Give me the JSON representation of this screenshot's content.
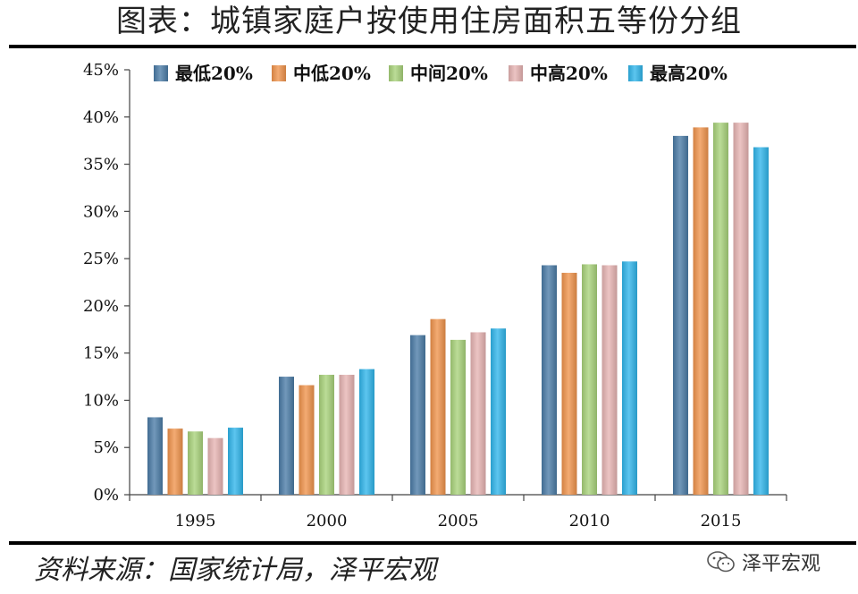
{
  "title": "图表：城镇家庭户按使用住房面积五等份分组",
  "source": "资料来源：国家统计局，泽平宏观",
  "watermark": "泽平宏观",
  "chart_data": {
    "type": "bar",
    "categories": [
      "1995",
      "2000",
      "2005",
      "2010",
      "2015"
    ],
    "series": [
      {
        "name": "最低20%",
        "color": "#4A7BA6",
        "values": [
          8.2,
          12.5,
          16.9,
          24.3,
          38.0
        ]
      },
      {
        "name": "中低20%",
        "color": "#F0934B",
        "values": [
          7.0,
          11.6,
          18.6,
          23.5,
          38.9
        ]
      },
      {
        "name": "中间20%",
        "color": "#A8D27A",
        "values": [
          6.7,
          12.7,
          16.4,
          24.4,
          39.4
        ]
      },
      {
        "name": "中高20%",
        "color": "#E6B3B2",
        "values": [
          6.0,
          12.7,
          17.2,
          24.3,
          39.4
        ]
      },
      {
        "name": "最高20%",
        "color": "#2FB5EA",
        "values": [
          7.1,
          13.3,
          17.6,
          24.7,
          36.8
        ]
      }
    ],
    "ylim": [
      0,
      45
    ],
    "yticks": [
      "0%",
      "5%",
      "10%",
      "15%",
      "20%",
      "25%",
      "30%",
      "35%",
      "40%",
      "45%"
    ],
    "legend_position": "top",
    "grid": false
  }
}
